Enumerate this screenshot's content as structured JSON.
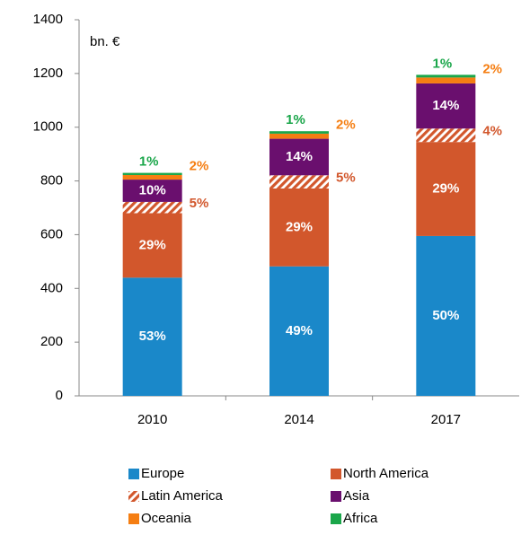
{
  "chart_data": {
    "type": "stacked_bar",
    "y_label": "bn. €",
    "categories": [
      "2010",
      "2014",
      "2017"
    ],
    "ylim": [
      0,
      1400
    ],
    "yticks": [
      0,
      200,
      400,
      600,
      800,
      1000,
      1200,
      1400
    ],
    "legend": "bottom",
    "series": [
      {
        "name": "Europe",
        "color": "#1a88c9",
        "values": [
          440,
          482,
          595
        ],
        "value_labels": [
          "53%",
          "49%",
          "50%"
        ],
        "label_position": "inside",
        "label_color": "#ffffff"
      },
      {
        "name": "North America",
        "color": "#d2572c",
        "values": [
          240,
          290,
          350
        ],
        "value_labels": [
          "29%",
          "29%",
          "29%"
        ],
        "label_position": "inside",
        "label_color": "#ffffff"
      },
      {
        "name": "Latin America",
        "color": "#d2572c",
        "hatch": true,
        "values": [
          42,
          49,
          50
        ],
        "value_labels": [
          "5%",
          "5%",
          "4%"
        ],
        "label_position": "right",
        "label_color": "#d2572c"
      },
      {
        "name": "Asia",
        "color": "#6a0f6e",
        "values": [
          83,
          136,
          168
        ],
        "value_labels": [
          "10%",
          "14%",
          "14%"
        ],
        "label_position": "inside",
        "label_color": "#ffffff"
      },
      {
        "name": "Oceania",
        "color": "#f57e12",
        "values": [
          17,
          19,
          22
        ],
        "value_labels": [
          "2%",
          "2%",
          "2%"
        ],
        "label_position": "right",
        "label_color": "#f57e12"
      },
      {
        "name": "Africa",
        "color": "#1aa64a",
        "values": [
          8,
          9,
          10
        ],
        "value_labels": [
          "1%",
          "1%",
          "1%"
        ],
        "label_position": "top",
        "label_color": "#1aa64a"
      }
    ]
  }
}
